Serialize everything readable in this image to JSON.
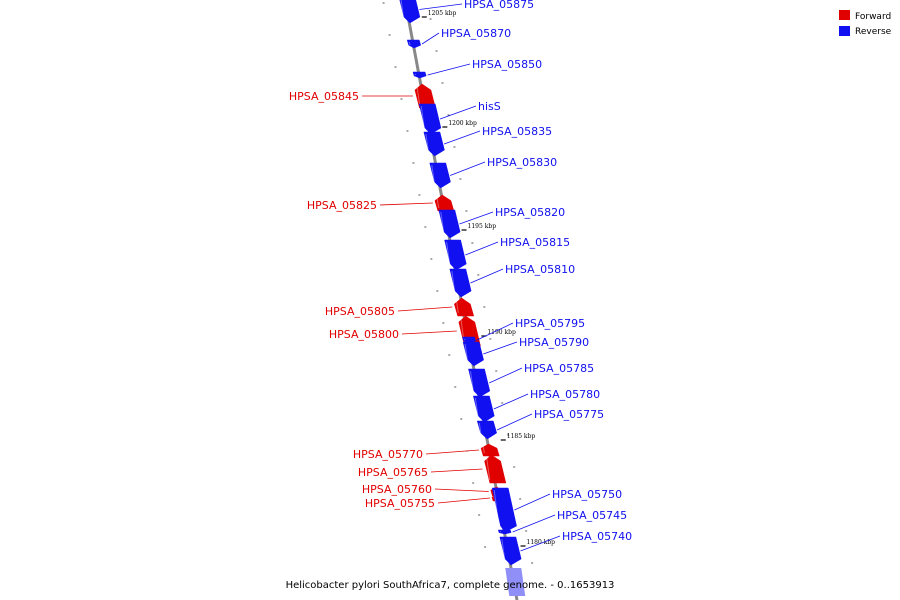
{
  "colors": {
    "forward": "#e00000",
    "reverse": "#1010f0",
    "reverse_faded": "#8f8ff7",
    "axis": "#888888"
  },
  "legend": {
    "forward_label": "Forward",
    "reverse_label": "Reverse"
  },
  "caption": "Helicobacter pylori SouthAfrica7, complete genome. - 0..1653913",
  "scale_ticks": [
    "1205 kbp",
    "1200 kbp",
    "1195 kbp",
    "1190 kbp",
    "1185 kbp",
    "1180 kbp"
  ],
  "genes": [
    {
      "name": "HPSA_05875",
      "strand": "reverse"
    },
    {
      "name": "HPSA_05870",
      "strand": "reverse"
    },
    {
      "name": "HPSA_05850",
      "strand": "reverse"
    },
    {
      "name": "HPSA_05845",
      "strand": "forward"
    },
    {
      "name": "hisS",
      "strand": "reverse"
    },
    {
      "name": "HPSA_05835",
      "strand": "reverse"
    },
    {
      "name": "HPSA_05830",
      "strand": "reverse"
    },
    {
      "name": "HPSA_05825",
      "strand": "forward"
    },
    {
      "name": "HPSA_05820",
      "strand": "reverse"
    },
    {
      "name": "HPSA_05815",
      "strand": "reverse"
    },
    {
      "name": "HPSA_05810",
      "strand": "reverse"
    },
    {
      "name": "HPSA_05805",
      "strand": "forward"
    },
    {
      "name": "HPSA_05800",
      "strand": "forward"
    },
    {
      "name": "HPSA_05795",
      "strand": "reverse"
    },
    {
      "name": "HPSA_05790",
      "strand": "reverse"
    },
    {
      "name": "HPSA_05785",
      "strand": "reverse"
    },
    {
      "name": "HPSA_05780",
      "strand": "reverse"
    },
    {
      "name": "HPSA_05775",
      "strand": "reverse"
    },
    {
      "name": "HPSA_05770",
      "strand": "forward"
    },
    {
      "name": "HPSA_05765",
      "strand": "forward"
    },
    {
      "name": "HPSA_05760",
      "strand": "forward"
    },
    {
      "name": "HPSA_05755",
      "strand": "forward"
    },
    {
      "name": "HPSA_05750",
      "strand": "reverse"
    },
    {
      "name": "HPSA_05745",
      "strand": "reverse"
    },
    {
      "name": "HPSA_05740",
      "strand": "reverse"
    }
  ]
}
